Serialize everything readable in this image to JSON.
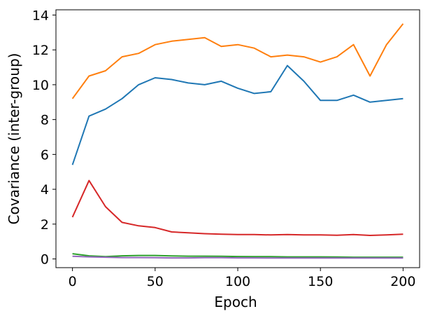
{
  "chart_data": {
    "type": "line",
    "title": "",
    "xlabel": "Epoch",
    "ylabel": "Covariance (inter-group)",
    "xlim": [
      -10,
      210
    ],
    "ylim": [
      -0.5,
      14.3
    ],
    "xticks": [
      0,
      50,
      100,
      150,
      200
    ],
    "yticks": [
      0,
      2,
      4,
      6,
      8,
      10,
      12,
      14
    ],
    "grid": false,
    "legend": "none",
    "x": [
      0,
      10,
      20,
      30,
      40,
      50,
      60,
      70,
      80,
      90,
      100,
      110,
      120,
      130,
      140,
      150,
      160,
      170,
      180,
      190,
      200
    ],
    "series": [
      {
        "color": "#1f77b4",
        "values": [
          5.4,
          8.2,
          8.6,
          9.2,
          10.0,
          10.4,
          10.3,
          10.1,
          10.0,
          10.2,
          9.8,
          9.5,
          9.6,
          11.1,
          10.2,
          9.1,
          9.1,
          9.4,
          9.0,
          9.1,
          9.2
        ]
      },
      {
        "color": "#ff7f0e",
        "values": [
          9.2,
          10.5,
          10.8,
          11.6,
          11.8,
          12.3,
          12.5,
          12.6,
          12.7,
          12.2,
          12.3,
          12.1,
          11.6,
          11.7,
          11.6,
          11.3,
          11.6,
          12.3,
          10.5,
          12.3,
          13.5
        ]
      },
      {
        "color": "#2ca02c",
        "values": [
          0.3,
          0.18,
          0.13,
          0.18,
          0.2,
          0.2,
          0.17,
          0.16,
          0.16,
          0.15,
          0.14,
          0.13,
          0.13,
          0.12,
          0.12,
          0.12,
          0.11,
          0.1,
          0.1,
          0.1,
          0.1
        ]
      },
      {
        "color": "#d62728",
        "values": [
          2.4,
          4.5,
          3.0,
          2.1,
          1.9,
          1.8,
          1.55,
          1.5,
          1.45,
          1.42,
          1.4,
          1.4,
          1.38,
          1.4,
          1.38,
          1.38,
          1.36,
          1.4,
          1.35,
          1.38,
          1.42
        ]
      },
      {
        "color": "#9467bd",
        "values": [
          0.15,
          0.12,
          0.1,
          0.08,
          0.08,
          0.07,
          0.06,
          0.06,
          0.07,
          0.07,
          0.06,
          0.06,
          0.05,
          0.05,
          0.05,
          0.05,
          0.05,
          0.05,
          0.05,
          0.05,
          0.05
        ]
      }
    ]
  }
}
